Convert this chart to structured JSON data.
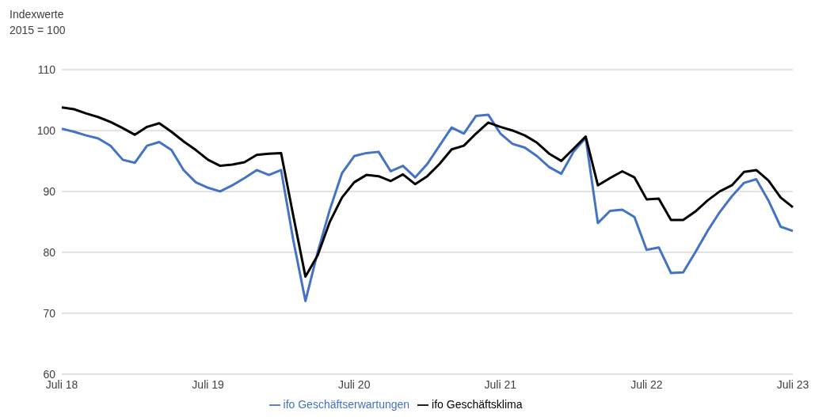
{
  "chart_data": {
    "type": "line",
    "ylabel": "Indexwerte\n2015 = 100",
    "categories": [
      "Juli 18",
      null,
      null,
      null,
      null,
      null,
      null,
      null,
      null,
      null,
      null,
      null,
      "Juli 19",
      null,
      null,
      null,
      null,
      null,
      null,
      null,
      null,
      null,
      null,
      null,
      "Juli 20",
      null,
      null,
      null,
      null,
      null,
      null,
      null,
      null,
      null,
      null,
      null,
      "Juli 21",
      null,
      null,
      null,
      null,
      null,
      null,
      null,
      null,
      null,
      null,
      null,
      "Juli 22",
      null,
      null,
      null,
      null,
      null,
      null,
      null,
      null,
      null,
      null,
      null,
      "Juli 23"
    ],
    "series": [
      {
        "name": "ifo Geschäftserwartungen",
        "color": "#4472c4",
        "values": [
          100.3,
          99.8,
          99.2,
          98.7,
          97.5,
          95.2,
          94.7,
          97.5,
          98.1,
          96.8,
          93.5,
          91.5,
          90.6,
          90.0,
          91.0,
          92.2,
          93.5,
          92.7,
          93.5,
          82,
          72,
          80,
          87,
          93,
          95.8,
          96.3,
          96.5,
          93.3,
          94.2,
          92.3,
          94.5,
          97.5,
          100.5,
          99.5,
          102.4,
          102.6,
          99.5,
          97.8,
          97.2,
          95.8,
          94.0,
          92.9,
          96.5,
          98.8,
          84.8,
          86.8,
          87,
          85.8,
          80.4,
          80.8,
          76.6,
          76.7,
          80,
          83.5,
          86.6,
          89.2,
          91.4,
          92,
          88.5,
          84.2,
          83.5
        ]
      },
      {
        "name": "ifo Geschäftsklima",
        "color": "#000000",
        "values": [
          103.8,
          103.5,
          102.8,
          102.2,
          101.4,
          100.4,
          99.3,
          100.6,
          101.2,
          99.8,
          98.2,
          96.8,
          95.2,
          94.2,
          94.4,
          94.8,
          96.0,
          96.2,
          96.3,
          86,
          76,
          79.5,
          85,
          89,
          91.5,
          92.7,
          92.5,
          91.7,
          92.8,
          91.2,
          92.5,
          94.5,
          96.9,
          97.5,
          99.5,
          101.3,
          100.6,
          100.0,
          99.2,
          98.0,
          96.2,
          95,
          97,
          99.0,
          91.0,
          92.2,
          93.3,
          92.3,
          88.7,
          88.8,
          85.3,
          85.3,
          86.7,
          88.5,
          90,
          91,
          93.2,
          93.5,
          91.8,
          89,
          87.4
        ]
      }
    ],
    "ylim": [
      60,
      110
    ],
    "yticks": [
      60,
      70,
      80,
      90,
      100,
      110
    ],
    "grid": "y",
    "legend": "bottom",
    "marker": "none",
    "line_style": "solid"
  }
}
